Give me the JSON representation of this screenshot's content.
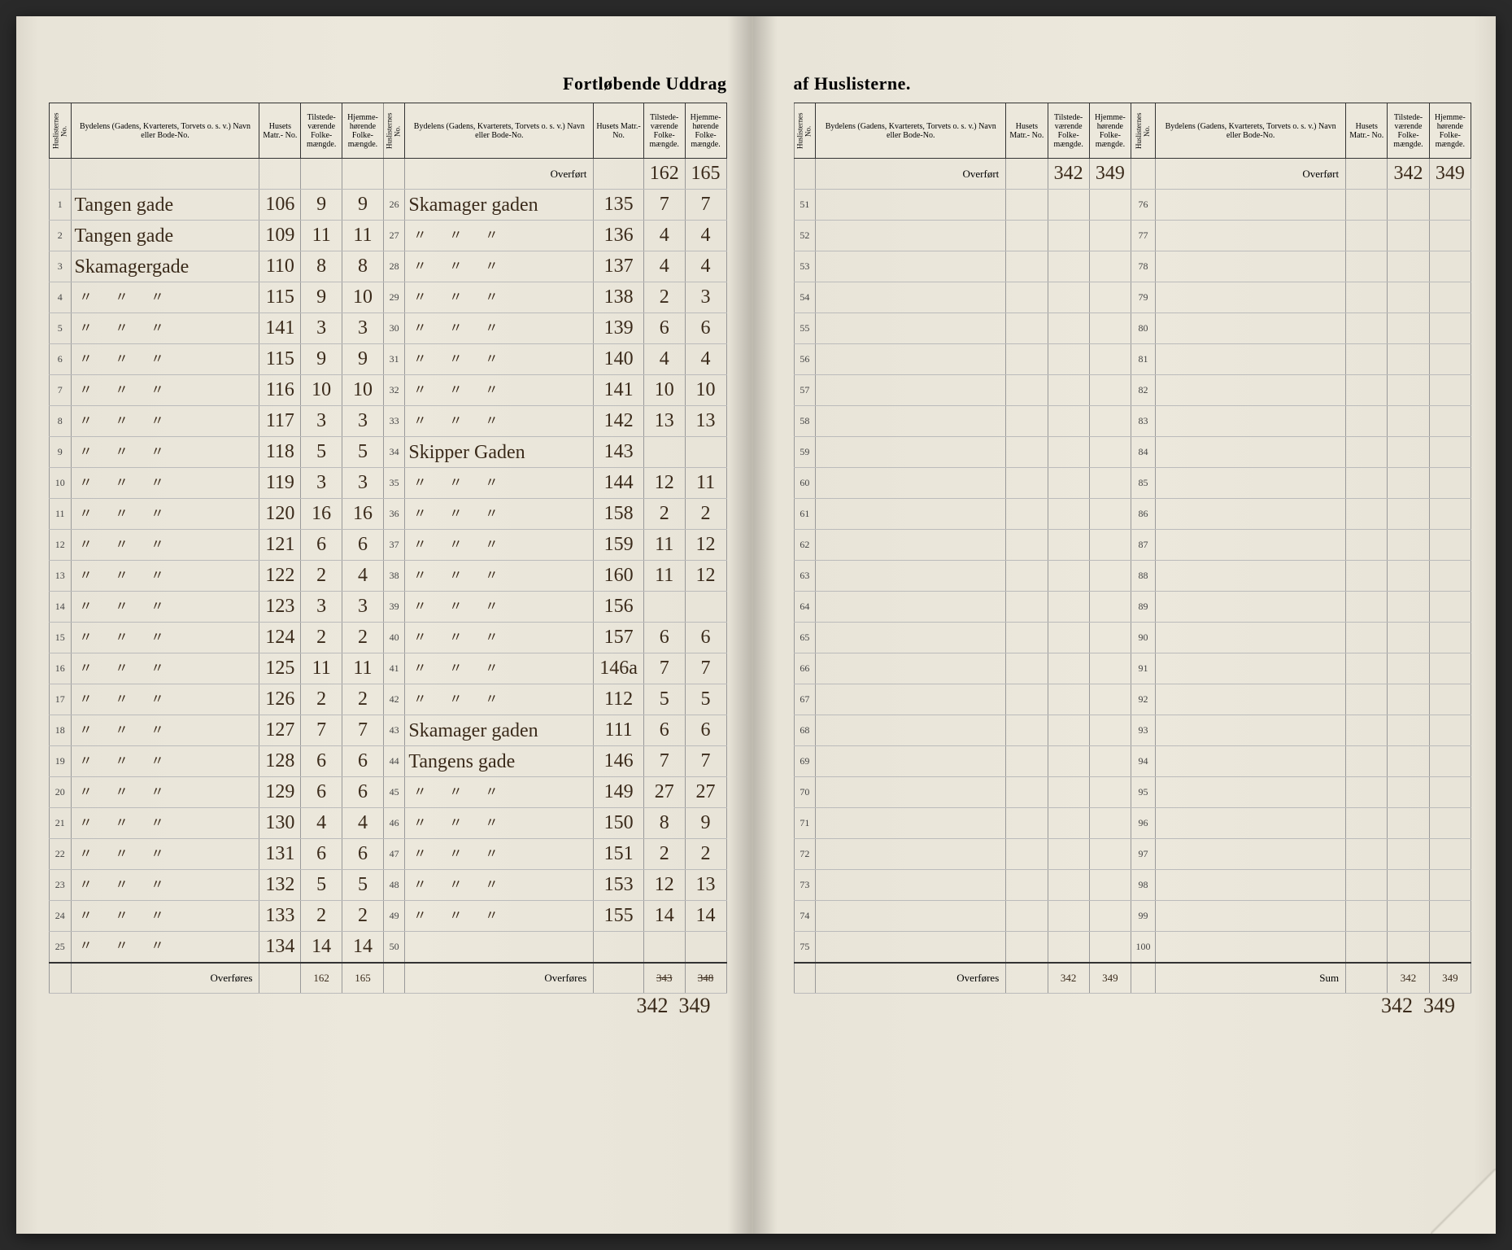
{
  "title_left": "Fortløbende Uddrag",
  "title_right": "af Huslisterne.",
  "headers": {
    "huslisternes_no": "Huslisternes No.",
    "bydelens": "Bydelens (Gadens, Kvarterets, Torvets o. s. v.) Navn eller Bode-No.",
    "husets_matr": "Husets Matr.- No.",
    "tilstede": "Tilstede- værende Folke- mængde.",
    "hjemme": "Hjemme- hørende Folke- mængde."
  },
  "overfort": "Overført",
  "overfores": "Overføres",
  "sum": "Sum",
  "left": {
    "colA": {
      "rows": [
        [
          "1",
          "Tangen gade",
          "106",
          "9",
          "9"
        ],
        [
          "2",
          "Tangen gade",
          "109",
          "11",
          "11"
        ],
        [
          "3",
          "Skamagergade",
          "110",
          "8",
          "8"
        ],
        [
          "4",
          "〃 〃 〃",
          "115",
          "9",
          "10"
        ],
        [
          "5",
          "〃 〃 〃",
          "141",
          "3",
          "3"
        ],
        [
          "6",
          "〃 〃 〃",
          "115",
          "9",
          "9"
        ],
        [
          "7",
          "〃 〃 〃",
          "116",
          "10",
          "10"
        ],
        [
          "8",
          "〃 〃 〃",
          "117",
          "3",
          "3"
        ],
        [
          "9",
          "〃 〃 〃",
          "118",
          "5",
          "5"
        ],
        [
          "10",
          "〃 〃 〃",
          "119",
          "3",
          "3"
        ],
        [
          "11",
          "〃 〃 〃",
          "120",
          "16",
          "16"
        ],
        [
          "12",
          "〃 〃 〃",
          "121",
          "6",
          "6"
        ],
        [
          "13",
          "〃 〃 〃",
          "122",
          "2",
          "4"
        ],
        [
          "14",
          "〃 〃 〃",
          "123",
          "3",
          "3"
        ],
        [
          "15",
          "〃 〃 〃",
          "124",
          "2",
          "2"
        ],
        [
          "16",
          "〃 〃 〃",
          "125",
          "11",
          "11"
        ],
        [
          "17",
          "〃 〃 〃",
          "126",
          "2",
          "2"
        ],
        [
          "18",
          "〃 〃 〃",
          "127",
          "7",
          "7"
        ],
        [
          "19",
          "〃 〃 〃",
          "128",
          "6",
          "6"
        ],
        [
          "20",
          "〃 〃 〃",
          "129",
          "6",
          "6"
        ],
        [
          "21",
          "〃 〃 〃",
          "130",
          "4",
          "4"
        ],
        [
          "22",
          "〃 〃 〃",
          "131",
          "6",
          "6"
        ],
        [
          "23",
          "〃 〃 〃",
          "132",
          "5",
          "5"
        ],
        [
          "24",
          "〃 〃 〃",
          "133",
          "2",
          "2"
        ],
        [
          "25",
          "〃 〃 〃",
          "134",
          "14",
          "14"
        ]
      ],
      "footer": [
        "162",
        "165"
      ]
    },
    "colB": {
      "overfort": [
        "162",
        "165"
      ],
      "rows": [
        [
          "26",
          "Skamager gaden",
          "135",
          "7",
          "7"
        ],
        [
          "27",
          "〃 〃 〃",
          "136",
          "4",
          "4"
        ],
        [
          "28",
          "〃 〃 〃",
          "137",
          "4",
          "4"
        ],
        [
          "29",
          "〃 〃 〃",
          "138",
          "2",
          "3"
        ],
        [
          "30",
          "〃 〃 〃",
          "139",
          "6",
          "6"
        ],
        [
          "31",
          "〃 〃 〃",
          "140",
          "4",
          "4"
        ],
        [
          "32",
          "〃 〃 〃",
          "141",
          "10",
          "10"
        ],
        [
          "33",
          "〃 〃 〃",
          "142",
          "13",
          "13"
        ],
        [
          "34",
          "Skipper Gaden",
          "143",
          "",
          ""
        ],
        [
          "35",
          "〃 〃 〃",
          "144",
          "12",
          "11"
        ],
        [
          "36",
          "〃 〃 〃",
          "158",
          "2",
          "2"
        ],
        [
          "37",
          "〃 〃 〃",
          "159",
          "11",
          "12"
        ],
        [
          "38",
          "〃 〃 〃",
          "160",
          "11",
          "12"
        ],
        [
          "39",
          "〃 〃 〃",
          "156",
          "",
          ""
        ],
        [
          "40",
          "〃 〃 〃",
          "157",
          "6",
          "6"
        ],
        [
          "41",
          "〃 〃 〃",
          "146a",
          "7",
          "7"
        ],
        [
          "42",
          "〃 〃 〃",
          "112",
          "5",
          "5"
        ],
        [
          "43",
          "Skamager gaden",
          "111",
          "6",
          "6"
        ],
        [
          "44",
          "Tangens gade",
          "146",
          "7",
          "7"
        ],
        [
          "45",
          "〃 〃 〃",
          "149",
          "27",
          "27"
        ],
        [
          "46",
          "〃 〃 〃",
          "150",
          "8",
          "9"
        ],
        [
          "47",
          "〃 〃 〃",
          "151",
          "2",
          "2"
        ],
        [
          "48",
          "〃 〃 〃",
          "153",
          "12",
          "13"
        ],
        [
          "49",
          "〃 〃 〃",
          "155",
          "14",
          "14"
        ],
        [
          "50",
          "",
          "",
          "",
          ""
        ]
      ],
      "footer_struck": [
        "343",
        "348"
      ],
      "footer": [
        "342",
        "349"
      ]
    }
  },
  "right": {
    "colC": {
      "overfort": [
        "342",
        "349"
      ],
      "nos": [
        "51",
        "52",
        "53",
        "54",
        "55",
        "56",
        "57",
        "58",
        "59",
        "60",
        "61",
        "62",
        "63",
        "64",
        "65",
        "66",
        "67",
        "68",
        "69",
        "70",
        "71",
        "72",
        "73",
        "74",
        "75"
      ],
      "footer": [
        "342",
        "349"
      ]
    },
    "colD": {
      "overfort": [
        "342",
        "349"
      ],
      "nos": [
        "76",
        "77",
        "78",
        "79",
        "80",
        "81",
        "82",
        "83",
        "84",
        "85",
        "86",
        "87",
        "88",
        "89",
        "90",
        "91",
        "92",
        "93",
        "94",
        "95",
        "96",
        "97",
        "98",
        "99",
        "100"
      ],
      "sum": [
        "342",
        "349"
      ]
    }
  },
  "colors": {
    "page_bg": "#e8e4d8",
    "ink": "#3a2a1a",
    "rule": "#333333",
    "faint_rule": "#999999"
  },
  "typography": {
    "title_fontsize": 22,
    "header_fontsize": 10,
    "script_fontsize": 24,
    "row_no_fontsize": 12
  }
}
